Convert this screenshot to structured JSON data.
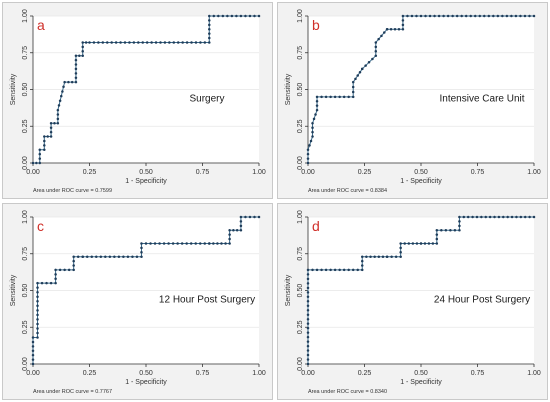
{
  "colors": {
    "letter": "#d0302a",
    "line": "#3a6b8c",
    "marker": "#1f3d5a",
    "axis": "#333333",
    "panel_bg": "#f2f2f2",
    "plot_bg": "#ffffff",
    "grid": "#e6e6e6"
  },
  "chart_data": [
    {
      "type": "line",
      "panel_letter": "a",
      "label": "Surgery",
      "xlabel": "1 - Specificity",
      "ylabel": "Sensitivity",
      "xlim": [
        0,
        1
      ],
      "ylim": [
        0,
        1
      ],
      "xticks": [
        "0.00",
        "0.25",
        "0.50",
        "0.75",
        "1.00"
      ],
      "yticks": [
        "0.00",
        "0.25",
        "0.50",
        "0.75",
        "1.00"
      ],
      "footnote": "Area under ROC curve = 0.7599",
      "x": [
        0,
        0.03,
        0.03,
        0.05,
        0.05,
        0.08,
        0.08,
        0.11,
        0.11,
        0.14,
        0.19,
        0.19,
        0.22,
        0.22,
        0.25,
        0.78,
        0.78,
        1.0
      ],
      "y": [
        0,
        0,
        0.09,
        0.09,
        0.18,
        0.18,
        0.27,
        0.27,
        0.36,
        0.55,
        0.55,
        0.73,
        0.73,
        0.82,
        0.82,
        0.82,
        1.0,
        1.0
      ]
    },
    {
      "type": "line",
      "panel_letter": "b",
      "label": "Intensive Care Unit",
      "xlabel": "1 - Specificity",
      "ylabel": "Sensitivity",
      "xlim": [
        0,
        1
      ],
      "ylim": [
        0,
        1
      ],
      "xticks": [
        "0.00",
        "0.25",
        "0.50",
        "0.75",
        "1.00"
      ],
      "yticks": [
        "0.00",
        "0.25",
        "0.50",
        "0.75",
        "1.00"
      ],
      "footnote": "Area under ROC curve = 0.8384",
      "x": [
        0,
        0,
        0.02,
        0.02,
        0.04,
        0.04,
        0.2,
        0.2,
        0.24,
        0.24,
        0.3,
        0.3,
        0.35,
        0.35,
        0.42,
        0.42,
        1.0
      ],
      "y": [
        0,
        0.09,
        0.18,
        0.27,
        0.36,
        0.45,
        0.45,
        0.55,
        0.64,
        0.64,
        0.73,
        0.82,
        0.91,
        0.91,
        0.91,
        1.0,
        1.0
      ]
    },
    {
      "type": "line",
      "panel_letter": "c",
      "label": "12 Hour Post Surgery",
      "xlabel": "1 - Specificity",
      "ylabel": "Sensitivity",
      "xlim": [
        0,
        1
      ],
      "ylim": [
        0,
        1
      ],
      "xticks": [
        "0.00",
        "0.25",
        "0.50",
        "0.75",
        "1.00"
      ],
      "yticks": [
        "0.00",
        "0.25",
        "0.50",
        "0.75",
        "1.00"
      ],
      "footnote": "Area under ROC curve = 0.7767",
      "x": [
        0,
        0,
        0.02,
        0.02,
        0.1,
        0.1,
        0.18,
        0.18,
        0.22,
        0.22,
        0.48,
        0.48,
        0.78,
        0.78,
        0.87,
        0.87,
        0.92,
        0.92,
        1.0
      ],
      "y": [
        0,
        0.18,
        0.18,
        0.55,
        0.55,
        0.64,
        0.64,
        0.73,
        0.73,
        0.73,
        0.73,
        0.82,
        0.82,
        0.82,
        0.82,
        0.91,
        0.91,
        1.0,
        1.0
      ]
    },
    {
      "type": "line",
      "panel_letter": "d",
      "label": "24 Hour Post Surgery",
      "xlabel": "1 - Specificity",
      "ylabel": "Sensitivity",
      "xlim": [
        0,
        1
      ],
      "ylim": [
        0,
        1
      ],
      "xticks": [
        "0.00",
        "0.25",
        "0.50",
        "0.75",
        "1.00"
      ],
      "yticks": [
        "0.00",
        "0.25",
        "0.50",
        "0.75",
        "1.00"
      ],
      "footnote": "Area under ROC curve = 0.8340",
      "x": [
        0,
        0,
        0.24,
        0.24,
        0.35,
        0.35,
        0.41,
        0.41,
        0.5,
        0.5,
        0.57,
        0.57,
        0.67,
        0.67,
        1.0
      ],
      "y": [
        0,
        0.64,
        0.64,
        0.73,
        0.73,
        0.73,
        0.73,
        0.82,
        0.82,
        0.82,
        0.82,
        0.91,
        0.91,
        1.0,
        1.0
      ]
    }
  ]
}
